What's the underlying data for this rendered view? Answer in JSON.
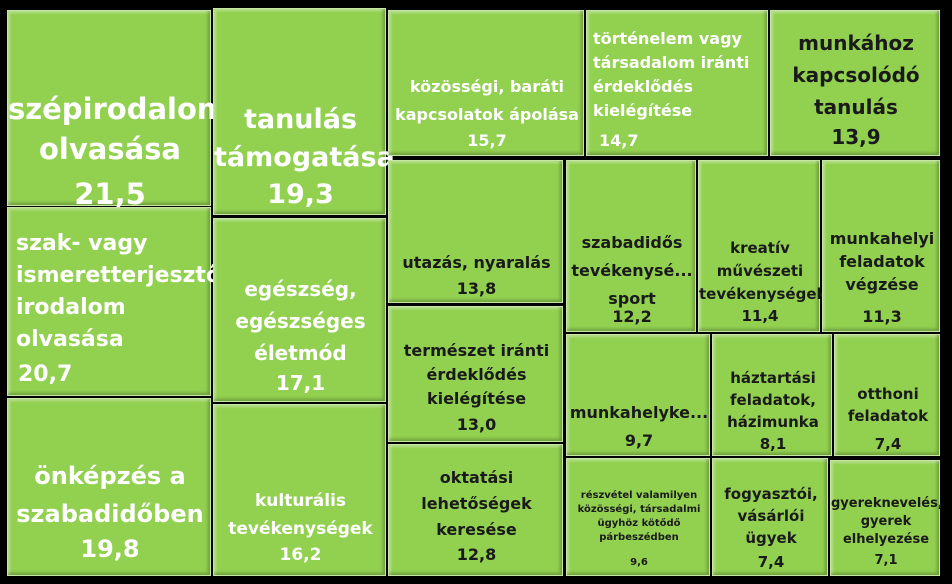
{
  "chart_data": {
    "type": "treemap",
    "colors": {
      "tile": "#92d050",
      "background": "#000000",
      "text_light": "#ffffff",
      "text_dark": "#1a1a1a"
    },
    "items": [
      {
        "label": "szépirodalom\nolvasása",
        "value": "21,5"
      },
      {
        "label": "tanulás\ntámogatása",
        "value": "19,3"
      },
      {
        "label": "közösségi, baráti\nkapcsolatok ápolása",
        "value": "15,7"
      },
      {
        "label": "történelem vagy\ntársadalom iránti\nérdeklődés\nkielégítése",
        "value": "14,7"
      },
      {
        "label": "munkához\nkapcsolódó\ntanulás",
        "value": "13,9"
      },
      {
        "label": "szak- vagy\nismeretterjesztő\nirodalom\nolvasása",
        "value": "20,7"
      },
      {
        "label": "egészség,\negészséges\néletmód",
        "value": "17,1"
      },
      {
        "label": "utazás, nyaralás",
        "value": "13,8"
      },
      {
        "label": "szabadidős\ntevékenysé...\nsport",
        "value": "12,2"
      },
      {
        "label": "kreatív\nművészeti\ntevékenységek",
        "value": "11,4"
      },
      {
        "label": "munkahelyi\nfeladatok\nvégzése",
        "value": "11,3"
      },
      {
        "label": "természet iránti\nérdeklődés\nkielégítése",
        "value": "13,0"
      },
      {
        "label": "háztartási\nfeladatok,\nházimunka",
        "value": "8,1"
      },
      {
        "label": "otthoni\nfeladatok",
        "value": "7,4"
      },
      {
        "label": "munkahelyke...",
        "value": "9,7"
      },
      {
        "label": "önképzés a\nszabadidőben",
        "value": "19,8"
      },
      {
        "label": "kulturális\ntevékenységek",
        "value": "16,2"
      },
      {
        "label": "oktatási\nlehetőségek\nkeresése",
        "value": "12,8"
      },
      {
        "label": "részvétel valamilyen\nközösségi, társadalmi\nügyhöz kötődő\npárbeszédben",
        "value": "9,6"
      },
      {
        "label": "fogyasztói,\nvásárlói\nügyek",
        "value": "7,4"
      },
      {
        "label": "gyereknevelés,\ngyerek\nelhelyezése",
        "value": "7,1"
      }
    ]
  }
}
